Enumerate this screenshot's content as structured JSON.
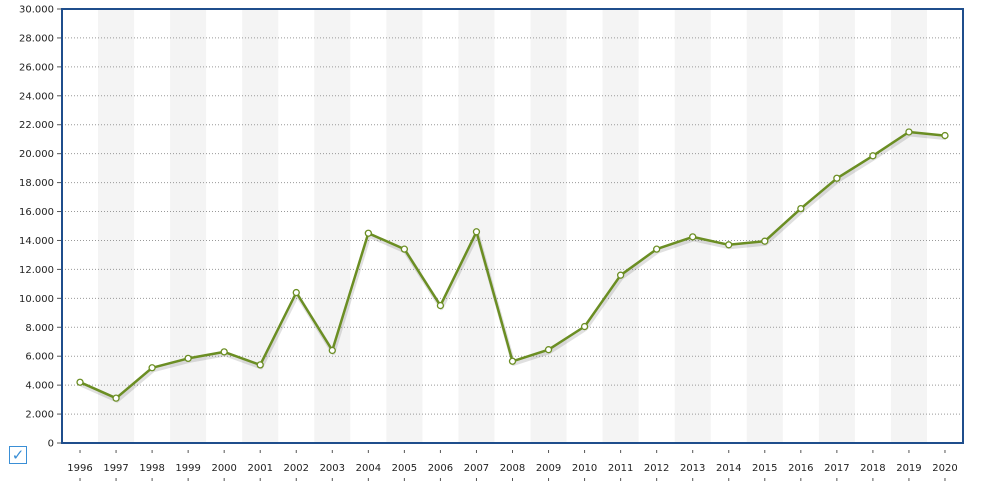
{
  "chart_data": {
    "type": "line",
    "title": "",
    "xlabel": "",
    "ylabel": "",
    "categories": [
      "1996",
      "1997",
      "1998",
      "1999",
      "2000",
      "2001",
      "2002",
      "2003",
      "2004",
      "2005",
      "2006",
      "2007",
      "2008",
      "2009",
      "2010",
      "2011",
      "2012",
      "2013",
      "2014",
      "2015",
      "2016",
      "2017",
      "2018",
      "2019",
      "2020"
    ],
    "series": [
      {
        "values": [
          4200,
          3100,
          5200,
          5850,
          6300,
          5400,
          10400,
          6400,
          14500,
          13400,
          9500,
          14600,
          5650,
          6450,
          8050,
          11600,
          13400,
          14250,
          13700,
          13950,
          16200,
          18300,
          19850,
          21500,
          21250
        ]
      }
    ],
    "ylim": [
      0,
      30000
    ],
    "yticks": [
      0,
      2000,
      4000,
      6000,
      8000,
      10000,
      12000,
      14000,
      16000,
      18000,
      20000,
      22000,
      24000,
      26000,
      28000,
      30000
    ],
    "ytick_labels": [
      "0",
      "2.000",
      "4.000",
      "6.000",
      "8.000",
      "10.000",
      "12.000",
      "14.000",
      "16.000",
      "18.000",
      "20.000",
      "22.000",
      "24.000",
      "26.000",
      "28.000",
      "30.000"
    ],
    "grid": true,
    "legend": "none"
  },
  "colors": {
    "line": "#6b8e23",
    "frame": "#1f4e8c",
    "band": "#f4f4f4",
    "grid": "#999999"
  },
  "controls": {
    "checkbox_icon": "checkmark-icon",
    "checkbox_glyph": "✓"
  }
}
